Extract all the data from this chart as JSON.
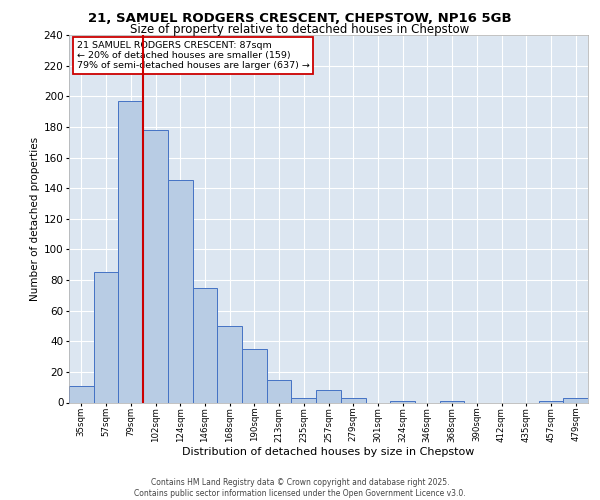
{
  "title1": "21, SAMUEL RODGERS CRESCENT, CHEPSTOW, NP16 5GB",
  "title2": "Size of property relative to detached houses in Chepstow",
  "xlabel": "Distribution of detached houses by size in Chepstow",
  "ylabel": "Number of detached properties",
  "categories": [
    "35sqm",
    "57sqm",
    "79sqm",
    "102sqm",
    "124sqm",
    "146sqm",
    "168sqm",
    "190sqm",
    "213sqm",
    "235sqm",
    "257sqm",
    "279sqm",
    "301sqm",
    "324sqm",
    "346sqm",
    "368sqm",
    "390sqm",
    "412sqm",
    "435sqm",
    "457sqm",
    "479sqm"
  ],
  "values": [
    11,
    85,
    197,
    178,
    145,
    75,
    50,
    35,
    15,
    3,
    8,
    3,
    0,
    1,
    0,
    1,
    0,
    0,
    0,
    1,
    3
  ],
  "bar_color": "#b8cce4",
  "bar_edge_color": "#4472c4",
  "bg_color": "#dce6f1",
  "grid_color": "#ffffff",
  "vline_color": "#cc0000",
  "vline_index": 2,
  "annotation_box_color": "#cc0000",
  "annotation_text_line1": "21 SAMUEL RODGERS CRESCENT: 87sqm",
  "annotation_text_line2": "← 20% of detached houses are smaller (159)",
  "annotation_text_line3": "79% of semi-detached houses are larger (637) →",
  "footer1": "Contains HM Land Registry data © Crown copyright and database right 2025.",
  "footer2": "Contains public sector information licensed under the Open Government Licence v3.0.",
  "ylim": [
    0,
    240
  ],
  "yticks": [
    0,
    20,
    40,
    60,
    80,
    100,
    120,
    140,
    160,
    180,
    200,
    220,
    240
  ],
  "title1_fontsize": 9.5,
  "title2_fontsize": 8.5,
  "ylabel_fontsize": 7.5,
  "xlabel_fontsize": 8.0,
  "xtick_fontsize": 6.2,
  "ytick_fontsize": 7.5,
  "ann_fontsize": 6.8,
  "footer_fontsize": 5.5
}
